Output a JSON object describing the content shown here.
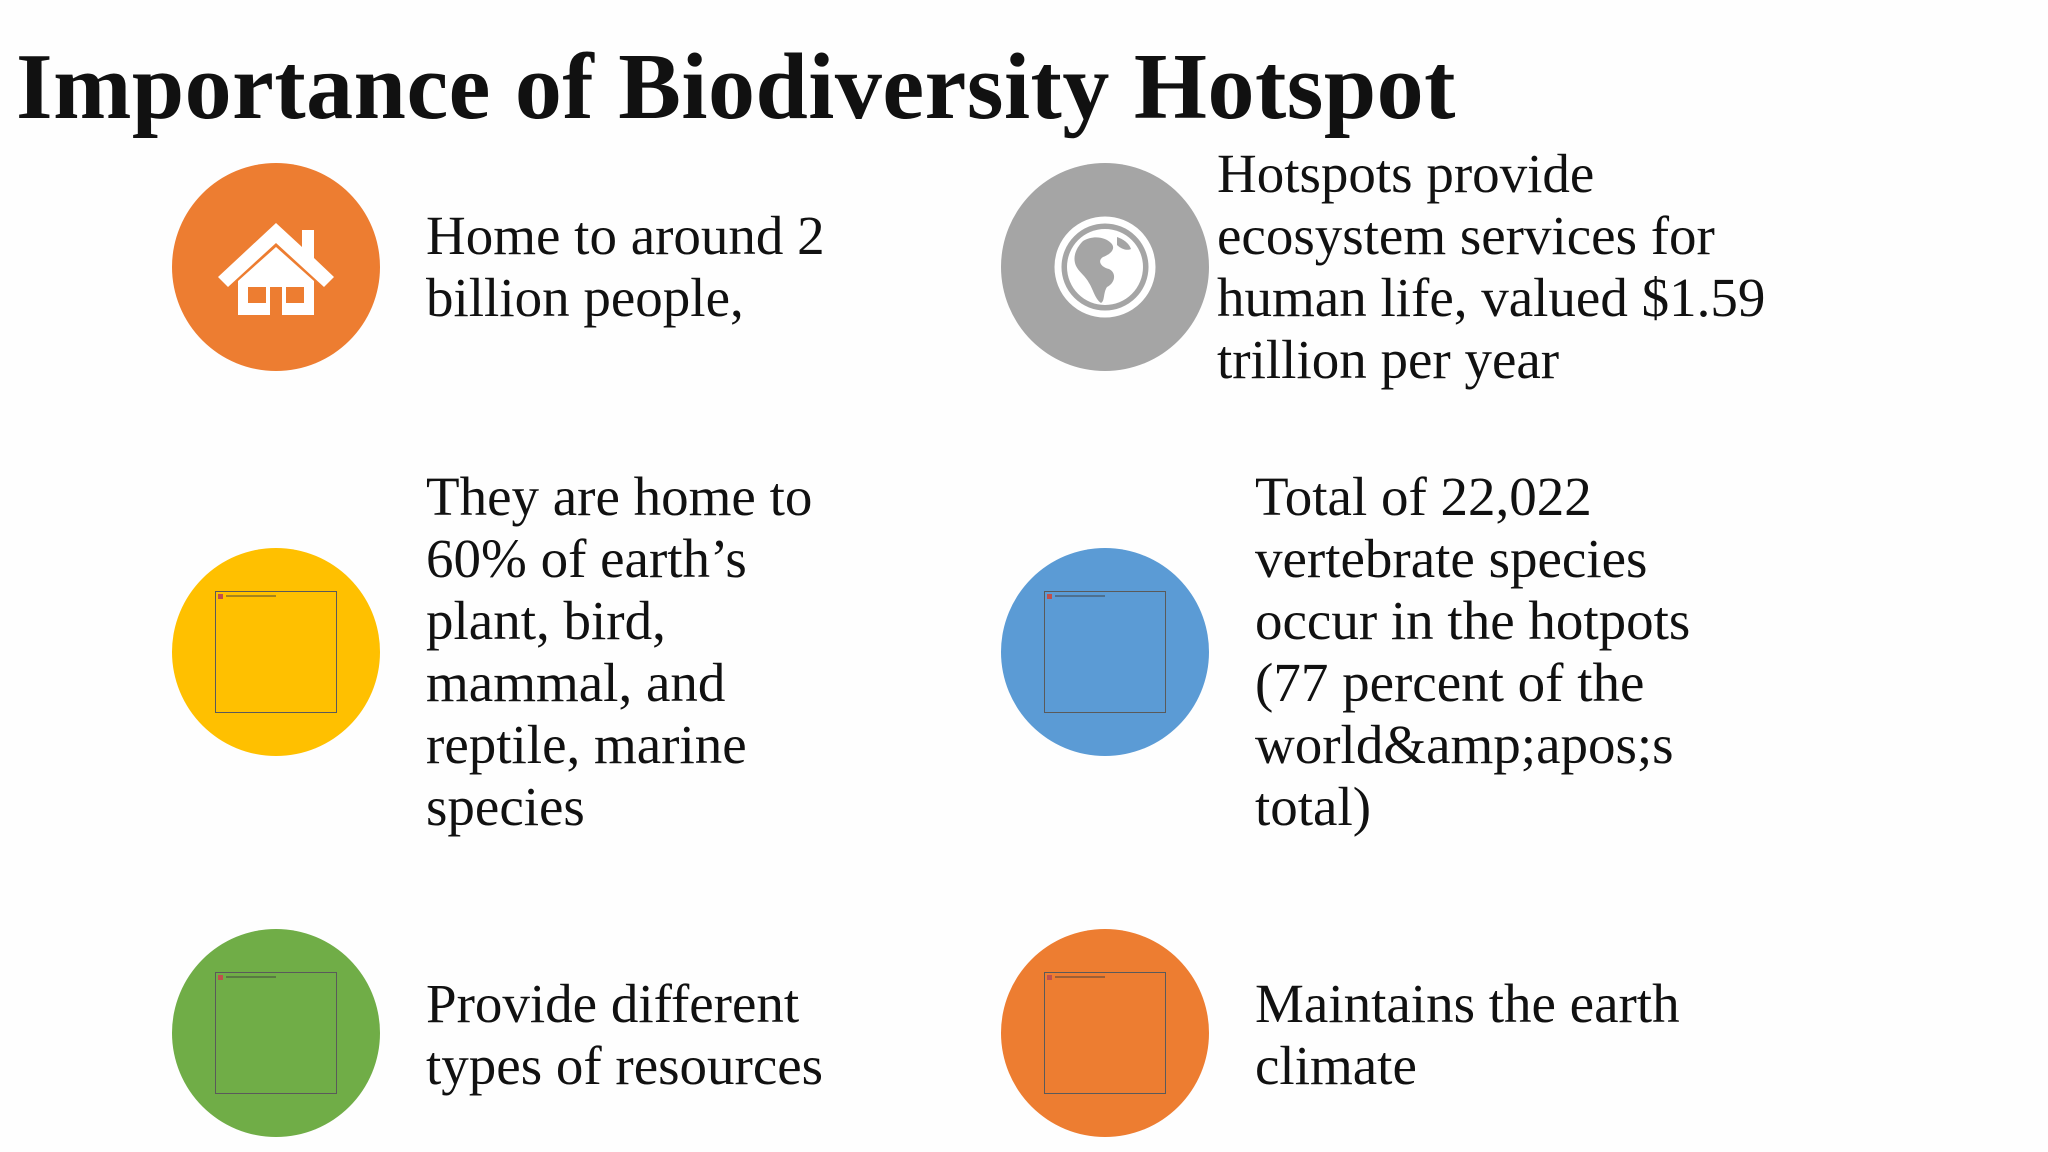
{
  "title": "Importance of Biodiversity Hotspot",
  "items": [
    {
      "text": "Home to around 2\nbillion people,",
      "icon": "house-icon",
      "color": "#ED7D31"
    },
    {
      "text": "Hotspots provide\necosystem services for\nhuman life, valued $1.59\ntrillion per year",
      "icon": "globe-icon",
      "color": "#A5A5A5"
    },
    {
      "text": "They are home to\n60% of earth’s\nplant, bird,\nmammal, and\nreptile, marine\nspecies",
      "icon": "image-placeholder-icon",
      "color": "#FFC000"
    },
    {
      "text": "Total of 22,022\nvertebrate species\noccur in the hotpots\n(77 percent of the\nworld&amp;apos;s\ntotal)",
      "icon": "image-placeholder-icon",
      "color": "#5B9BD5"
    },
    {
      "text": "Provide different\ntypes of resources",
      "icon": "image-placeholder-icon",
      "color": "#70AD47"
    },
    {
      "text": "Maintains the earth\nclimate",
      "icon": "image-placeholder-icon",
      "color": "#ED7D31"
    }
  ]
}
